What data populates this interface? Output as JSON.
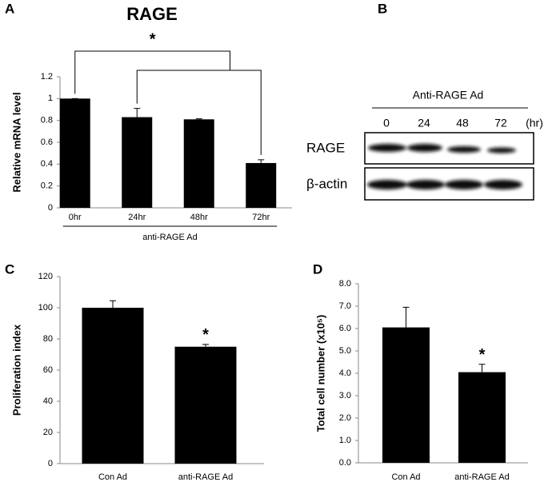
{
  "chart_data": [
    {
      "type": "bar",
      "panel": "A",
      "title": "RAGE",
      "ylabel": "Relative mRNA level",
      "categories": [
        "0hr",
        "24hr",
        "48hr",
        "72hr"
      ],
      "values": [
        1,
        0.83,
        0.81,
        0.41
      ],
      "errors": [
        0,
        0.08,
        0.005,
        0.03
      ],
      "group_label": "anti-RAGE Ad",
      "significance": "*",
      "color": "#000000",
      "ylim": [
        0,
        1.2
      ],
      "yticks": [
        0,
        0.2,
        0.4,
        0.6,
        0.8,
        1,
        1.2
      ]
    },
    {
      "type": "bar",
      "panel": "C",
      "ylabel": "Proliferation index",
      "categories": [
        "Con Ad",
        "anti-RAGE Ad"
      ],
      "values": [
        100,
        75
      ],
      "errors": [
        4.5,
        1.5
      ],
      "significance": "*",
      "color": "#000000",
      "ylim": [
        0,
        120
      ],
      "yticks": [
        0,
        20,
        40,
        60,
        80,
        100,
        120
      ]
    },
    {
      "type": "bar",
      "panel": "D",
      "ylabel": "Total cell number (x10⁵)",
      "categories": [
        "Con Ad",
        "anti-RAGE Ad"
      ],
      "values": [
        6.05,
        4.05
      ],
      "errors": [
        0.9,
        0.35
      ],
      "significance": "*",
      "color": "#000000",
      "ylim": [
        0,
        8
      ],
      "yticks": [
        {
          "value": 0,
          "label": "0.0"
        },
        {
          "value": 1,
          "label": "1.0"
        },
        {
          "value": 2,
          "label": "2.0"
        },
        {
          "value": 3,
          "label": "3.0"
        },
        {
          "value": 4,
          "label": "4.0"
        },
        {
          "value": 5,
          "label": "5.0"
        },
        {
          "value": 6,
          "label": "6.0"
        },
        {
          "value": 7,
          "label": "7.0"
        },
        {
          "value": 8,
          "label": "8.0"
        }
      ]
    }
  ],
  "blot": {
    "panel": "B",
    "header": "Anti-RAGE Ad",
    "lanes": [
      "0",
      "24",
      "48",
      "72"
    ],
    "unit": "(hr)",
    "rows": [
      "RAGE",
      "β-actin"
    ]
  }
}
